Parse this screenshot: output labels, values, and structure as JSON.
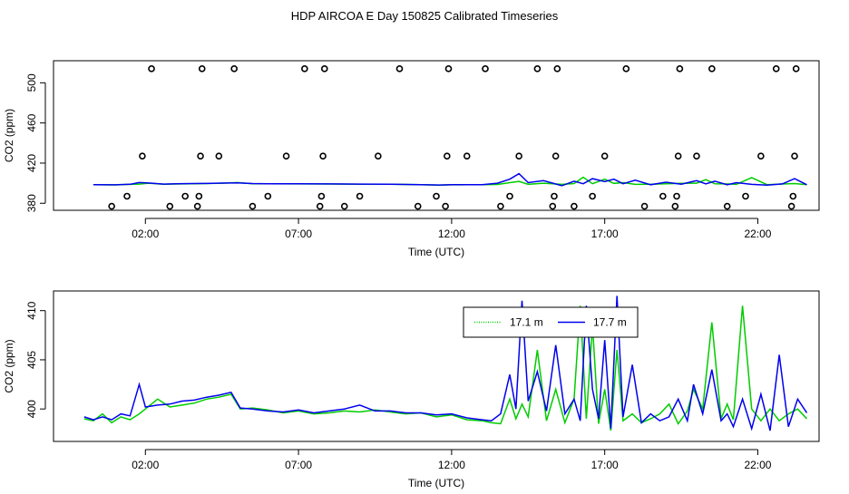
{
  "page": {
    "title": "HDP AIRCOA E  Day 150825  Calibrated Timeseries"
  },
  "colors": {
    "series_1": "#00cc00",
    "series_2": "#0000ee",
    "points": "#000000"
  },
  "chart_data": [
    {
      "type": "line",
      "title": "",
      "xlabel": "Time (UTC)",
      "ylabel": "CO2 (ppm)",
      "xlim": [
        -1.0,
        24.0
      ],
      "ylim": [
        373,
        522
      ],
      "x_ticks": [
        2,
        7,
        12,
        17,
        22
      ],
      "x_tick_labels": [
        "02:00",
        "07:00",
        "12:00",
        "17:00",
        "22:00"
      ],
      "y_ticks": [
        380,
        420,
        460,
        500
      ],
      "y_tick_labels": [
        "380",
        "420",
        "460",
        "500"
      ],
      "grid": false,
      "legend": "none",
      "series": [
        {
          "style": "line",
          "x": [
            0.3,
            1.0,
            1.5,
            1.8,
            2.1,
            2.6,
            3.0,
            3.5,
            4.0,
            4.5,
            5.0,
            5.5,
            6.0,
            7.0,
            8.0,
            9.0,
            10.0,
            11.0,
            11.6,
            12.0,
            12.5,
            13.0,
            13.5,
            13.9,
            14.2,
            14.5,
            15.0,
            15.6,
            16.0,
            16.3,
            16.6,
            17.0,
            17.3,
            17.6,
            18.0,
            18.5,
            19.0,
            19.5,
            20.0,
            20.3,
            20.6,
            21.0,
            21.3,
            21.8,
            22.3,
            22.8,
            23.2,
            23.6
          ],
          "y": [
            398.5,
            398.3,
            398.8,
            399.1,
            400.0,
            399.0,
            399.2,
            399.5,
            399.6,
            400.0,
            400.6,
            399.5,
            399.4,
            399.3,
            399.2,
            399.0,
            398.9,
            398.5,
            398.1,
            398.4,
            398.5,
            398.5,
            398.7,
            400.5,
            401.8,
            398.8,
            400.0,
            398.8,
            399.6,
            406.0,
            399.5,
            404.0,
            399.8,
            400.5,
            398.8,
            399.0,
            399.5,
            399.8,
            400.0,
            403.5,
            399.5,
            399.3,
            398.8,
            405.5,
            398.6,
            399.2,
            399.6,
            398.6
          ]
        },
        {
          "style": "line",
          "x": [
            0.3,
            1.0,
            1.5,
            1.8,
            2.1,
            2.6,
            3.0,
            3.5,
            4.0,
            4.5,
            5.0,
            5.5,
            6.0,
            7.0,
            8.0,
            9.0,
            10.0,
            11.0,
            11.6,
            12.0,
            12.5,
            13.0,
            13.5,
            13.9,
            14.2,
            14.5,
            15.0,
            15.6,
            16.0,
            16.3,
            16.6,
            17.0,
            17.3,
            17.6,
            18.0,
            18.5,
            19.0,
            19.5,
            20.0,
            20.3,
            20.6,
            21.0,
            21.3,
            21.8,
            22.3,
            22.8,
            23.2,
            23.6
          ],
          "y": [
            398.5,
            398.4,
            398.9,
            400.6,
            400.2,
            399.1,
            399.4,
            399.6,
            399.7,
            400.1,
            400.3,
            399.6,
            399.5,
            399.4,
            399.3,
            399.1,
            399.0,
            398.6,
            398.2,
            398.5,
            398.6,
            398.6,
            400.0,
            404.0,
            409.5,
            400.5,
            402.5,
            397.5,
            402.0,
            399.5,
            404.5,
            401.5,
            404.0,
            399.5,
            403.0,
            398.5,
            401.0,
            399.0,
            402.5,
            399.4,
            402.0,
            398.5,
            400.5,
            398.8,
            398.0,
            399.3,
            404.5,
            398.5
          ]
        },
        {
          "style": "points",
          "x": [
            0.9,
            1.4,
            1.9,
            2.2,
            2.8,
            3.3,
            3.7,
            3.75,
            3.8,
            3.85,
            4.4,
            4.9,
            5.5,
            6.0,
            6.6,
            7.2,
            7.7,
            7.75,
            7.8,
            7.85,
            8.5,
            9.0,
            9.6,
            10.3,
            10.9,
            11.5,
            11.8,
            11.85,
            11.9,
            12.5,
            13.1,
            13.6,
            13.9,
            14.2,
            14.8,
            15.3,
            15.35,
            15.4,
            15.45,
            16.0,
            16.6,
            17.0,
            17.7,
            18.3,
            18.9,
            19.3,
            19.35,
            19.4,
            19.45,
            20.0,
            20.5,
            21.0,
            21.6,
            22.1,
            22.6,
            23.1,
            23.15,
            23.2,
            23.25
          ],
          "y": [
            377,
            387,
            427,
            514,
            377,
            387,
            377,
            387,
            427,
            514,
            427,
            514,
            377,
            387,
            427,
            514,
            377,
            387,
            427,
            514,
            377,
            387,
            427,
            514,
            377,
            387,
            377,
            427,
            514,
            427,
            514,
            377,
            387,
            427,
            514,
            377,
            387,
            427,
            514,
            377,
            387,
            427,
            514,
            377,
            387,
            377,
            387,
            427,
            514,
            427,
            514,
            377,
            387,
            427,
            514,
            377,
            387,
            427,
            514
          ]
        }
      ]
    },
    {
      "type": "line",
      "title": "",
      "xlabel": "Time (UTC)",
      "ylabel": "CO2 (ppm)",
      "xlim": [
        -1.0,
        24.0
      ],
      "ylim": [
        396.7,
        412.0
      ],
      "x_ticks": [
        2,
        7,
        12,
        17,
        22
      ],
      "x_tick_labels": [
        "02:00",
        "07:00",
        "12:00",
        "17:00",
        "22:00"
      ],
      "y_ticks": [
        400,
        405,
        410
      ],
      "y_tick_labels": [
        "400",
        "405",
        "410"
      ],
      "grid": false,
      "legend": "top-center",
      "series": [
        {
          "name": "17.1 m",
          "style": "line",
          "x": [
            0.0,
            0.3,
            0.6,
            0.9,
            1.2,
            1.5,
            1.8,
            2.0,
            2.4,
            2.8,
            3.2,
            3.6,
            4.0,
            4.4,
            4.8,
            5.1,
            5.5,
            6.0,
            6.5,
            7.0,
            7.5,
            8.0,
            8.5,
            9.0,
            9.5,
            10.0,
            10.5,
            11.0,
            11.5,
            12.0,
            12.5,
            13.0,
            13.3,
            13.6,
            13.9,
            14.1,
            14.3,
            14.5,
            14.8,
            15.1,
            15.4,
            15.7,
            16.0,
            16.2,
            16.4,
            16.6,
            16.8,
            17.0,
            17.2,
            17.4,
            17.6,
            17.9,
            18.2,
            18.5,
            18.8,
            19.1,
            19.4,
            19.7,
            19.9,
            20.2,
            20.5,
            20.8,
            21.0,
            21.2,
            21.5,
            21.8,
            22.1,
            22.4,
            22.7,
            23.0,
            23.3,
            23.6
          ],
          "y": [
            399.0,
            398.8,
            399.5,
            398.6,
            399.2,
            398.9,
            399.5,
            400.0,
            401.0,
            400.2,
            400.4,
            400.6,
            401.0,
            401.2,
            401.5,
            400.0,
            400.1,
            399.9,
            399.6,
            399.8,
            399.5,
            399.6,
            399.8,
            399.7,
            399.9,
            399.7,
            399.5,
            399.6,
            399.2,
            399.4,
            398.9,
            398.8,
            398.6,
            398.5,
            401.0,
            399.0,
            400.5,
            399.2,
            406.0,
            398.8,
            402.0,
            398.6,
            401.0,
            410.5,
            399.0,
            408.5,
            398.5,
            402.0,
            397.8,
            406.0,
            398.8,
            399.5,
            398.6,
            399.0,
            399.5,
            400.5,
            398.5,
            399.8,
            402.0,
            400.0,
            408.8,
            399.0,
            400.5,
            398.9,
            410.5,
            400.0,
            398.8,
            400.0,
            398.8,
            399.5,
            400.0,
            399.0
          ]
        },
        {
          "name": "17.7 m",
          "style": "line",
          "x": [
            0.0,
            0.3,
            0.6,
            0.9,
            1.2,
            1.5,
            1.8,
            2.0,
            2.4,
            2.8,
            3.2,
            3.6,
            4.0,
            4.4,
            4.8,
            5.1,
            5.5,
            6.0,
            6.5,
            7.0,
            7.5,
            8.0,
            8.5,
            9.0,
            9.5,
            10.0,
            10.5,
            11.0,
            11.5,
            12.0,
            12.5,
            13.0,
            13.3,
            13.6,
            13.9,
            14.1,
            14.3,
            14.5,
            14.8,
            15.1,
            15.4,
            15.7,
            16.0,
            16.2,
            16.4,
            16.6,
            16.8,
            17.0,
            17.2,
            17.4,
            17.6,
            17.9,
            18.2,
            18.5,
            18.8,
            19.1,
            19.4,
            19.7,
            19.9,
            20.2,
            20.5,
            20.8,
            21.0,
            21.2,
            21.5,
            21.8,
            22.1,
            22.4,
            22.7,
            23.0,
            23.3,
            23.6
          ],
          "y": [
            399.2,
            398.9,
            399.2,
            398.9,
            399.5,
            399.3,
            402.5,
            400.2,
            400.4,
            400.5,
            400.8,
            400.9,
            401.2,
            401.4,
            401.7,
            400.1,
            400.0,
            399.8,
            399.7,
            399.9,
            399.6,
            399.8,
            400.0,
            400.4,
            399.8,
            399.8,
            399.6,
            399.6,
            399.4,
            399.5,
            399.1,
            398.9,
            398.8,
            399.5,
            403.5,
            400.0,
            411.0,
            400.8,
            403.8,
            399.8,
            406.5,
            399.5,
            401.0,
            398.8,
            410.5,
            402.0,
            399.0,
            407.0,
            398.0,
            411.5,
            399.2,
            404.5,
            398.6,
            399.5,
            398.8,
            399.2,
            401.0,
            398.8,
            402.5,
            399.5,
            404.0,
            398.8,
            399.5,
            398.2,
            401.0,
            398.0,
            401.5,
            397.8,
            405.5,
            398.2,
            401.0,
            399.6
          ]
        }
      ]
    }
  ]
}
